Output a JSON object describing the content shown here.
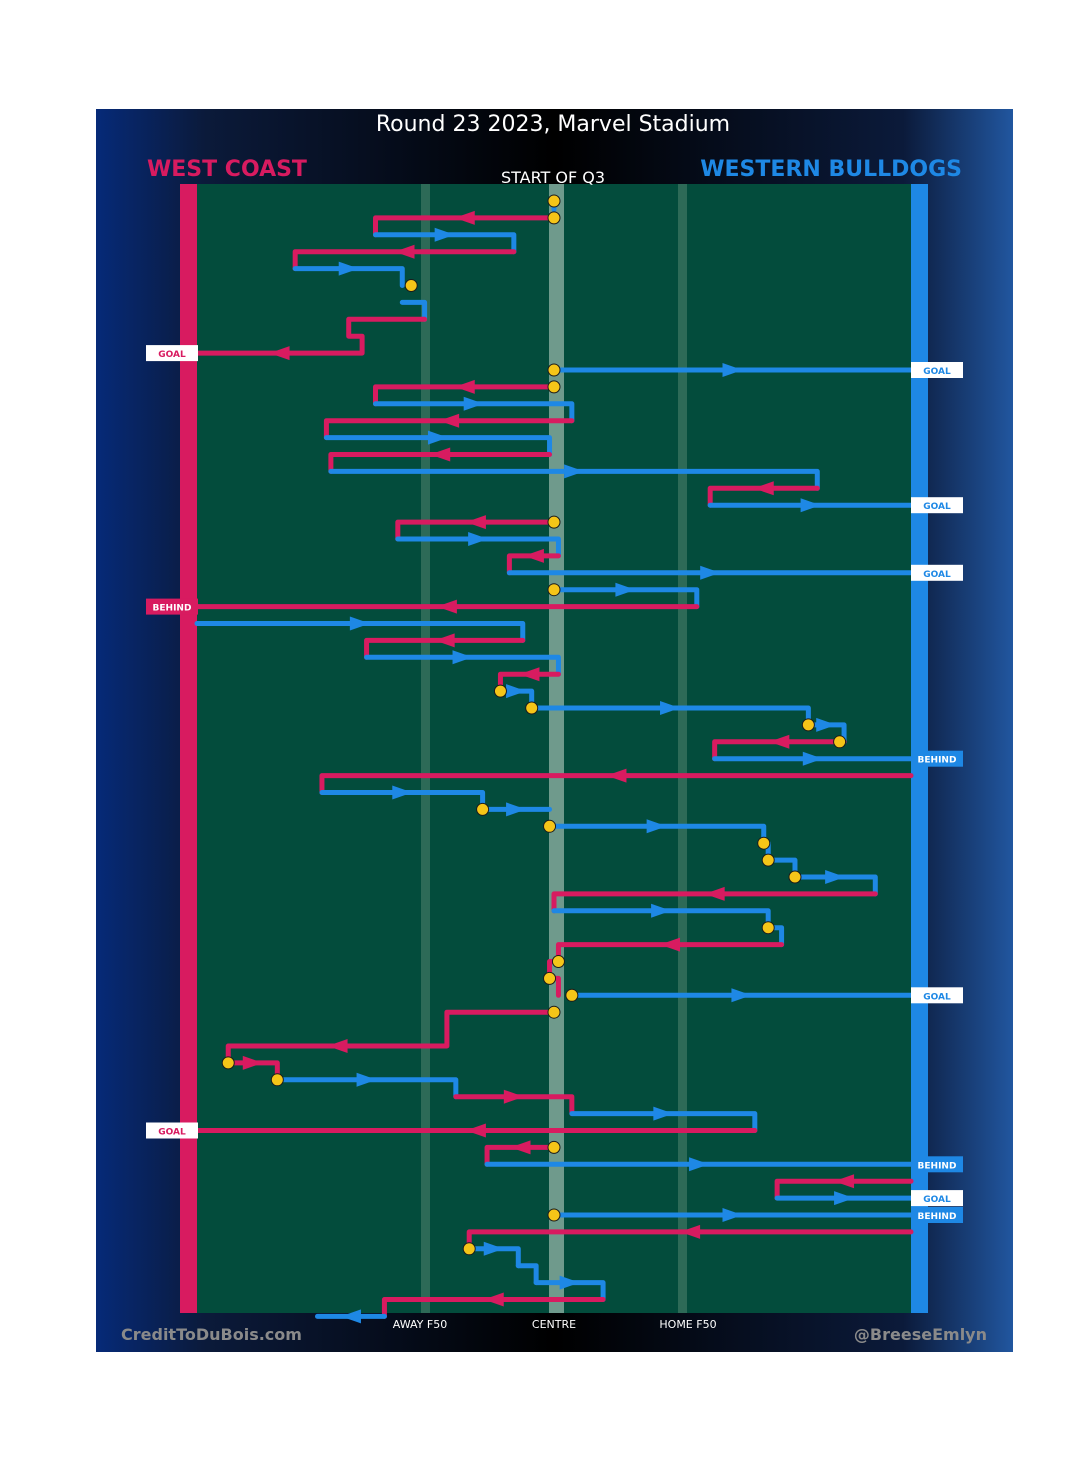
{
  "title": "Round 23 2023, Marvel Stadium",
  "subtitle": "START OF Q3",
  "teams": {
    "left": {
      "name": "WEST COAST",
      "color": "#d81b60"
    },
    "right": {
      "name": "WESTERN BULLDOGS",
      "color": "#1e88e5"
    }
  },
  "field_labels": {
    "away": "AWAY F50",
    "centre": "CENTRE",
    "home": "HOME F50"
  },
  "footer": {
    "left": "CreditToDuBois.com",
    "right": "@BreeseEmlyn"
  },
  "colors": {
    "west_coast": "#d81b60",
    "bulldogs": "#1e88e5",
    "field": "#034c3c",
    "stoppage": "#f5c518"
  },
  "chart_data": {
    "type": "line",
    "x_axis": "field position (metres from centre; -80 = West Coast goal line, +80 = Bulldogs goal line)",
    "xlim": [
      -80,
      80
    ],
    "marks": {
      "AWAY F50": -30,
      "CENTRE": 0,
      "HOME F50": 30
    },
    "sequence": [
      {
        "team": "bulldogs",
        "path": [
          [
            0,
            0
          ],
          [
            0,
            0.5
          ]
        ]
      },
      {
        "team": "westcoast",
        "path": [
          [
            0,
            1
          ],
          [
            -40,
            1
          ],
          [
            -40,
            2
          ]
        ]
      },
      {
        "team": "bulldogs",
        "path": [
          [
            -40,
            2
          ],
          [
            -9,
            2
          ],
          [
            -9,
            3
          ]
        ]
      },
      {
        "team": "westcoast",
        "path": [
          [
            -9,
            3
          ],
          [
            -58,
            3
          ],
          [
            -58,
            4
          ]
        ]
      },
      {
        "team": "bulldogs",
        "path": [
          [
            -58,
            4
          ],
          [
            -34,
            4
          ],
          [
            -34,
            5
          ]
        ]
      },
      {
        "team": "bulldogs",
        "path": [
          [
            -34,
            6
          ],
          [
            -29,
            6
          ],
          [
            -29,
            7
          ]
        ]
      },
      {
        "team": "westcoast",
        "path": [
          [
            -29,
            7
          ],
          [
            -46,
            7
          ],
          [
            -46,
            8
          ],
          [
            -43,
            8
          ],
          [
            -43,
            9
          ],
          [
            -80,
            9
          ]
        ],
        "result": "GOAL"
      },
      {
        "team": "bulldogs",
        "path": [
          [
            0,
            10
          ],
          [
            80,
            10
          ]
        ],
        "result": "GOAL"
      },
      {
        "team": "westcoast",
        "path": [
          [
            0,
            11
          ],
          [
            -40,
            11
          ],
          [
            -40,
            12
          ]
        ]
      },
      {
        "team": "bulldogs",
        "path": [
          [
            -40,
            12
          ],
          [
            4,
            12
          ],
          [
            4,
            13
          ]
        ]
      },
      {
        "team": "westcoast",
        "path": [
          [
            4,
            13
          ],
          [
            -51,
            13
          ],
          [
            -51,
            14
          ]
        ]
      },
      {
        "team": "bulldogs",
        "path": [
          [
            -51,
            14
          ],
          [
            -1,
            14
          ],
          [
            -1,
            15
          ]
        ]
      },
      {
        "team": "westcoast",
        "path": [
          [
            -1,
            15
          ],
          [
            -50,
            15
          ],
          [
            -50,
            16
          ]
        ]
      },
      {
        "team": "bulldogs",
        "path": [
          [
            -50,
            16
          ],
          [
            59,
            16
          ],
          [
            59,
            17
          ]
        ]
      },
      {
        "team": "westcoast",
        "path": [
          [
            59,
            17
          ],
          [
            35,
            17
          ],
          [
            35,
            18
          ]
        ]
      },
      {
        "team": "bulldogs",
        "path": [
          [
            35,
            18
          ],
          [
            80,
            18
          ]
        ],
        "result": "GOAL"
      },
      {
        "team": "westcoast",
        "path": [
          [
            0,
            19
          ],
          [
            -35,
            19
          ],
          [
            -35,
            20
          ]
        ]
      },
      {
        "team": "bulldogs",
        "path": [
          [
            -35,
            20
          ],
          [
            1,
            20
          ],
          [
            1,
            21
          ]
        ]
      },
      {
        "team": "westcoast",
        "path": [
          [
            1,
            21
          ],
          [
            -10,
            21
          ],
          [
            -10,
            22
          ]
        ]
      },
      {
        "team": "bulldogs",
        "path": [
          [
            -10,
            22
          ],
          [
            80,
            22
          ]
        ],
        "result": "GOAL"
      },
      {
        "team": "bulldogs",
        "path": [
          [
            0,
            23
          ],
          [
            32,
            23
          ],
          [
            32,
            24
          ]
        ]
      },
      {
        "team": "westcoast",
        "path": [
          [
            32,
            24
          ],
          [
            -80,
            24
          ]
        ],
        "result": "BEHIND"
      },
      {
        "team": "bulldogs",
        "path": [
          [
            -80,
            25
          ],
          [
            -7,
            25
          ],
          [
            -7,
            26
          ]
        ]
      },
      {
        "team": "westcoast",
        "path": [
          [
            -7,
            26
          ],
          [
            -42,
            26
          ],
          [
            -42,
            27
          ]
        ]
      },
      {
        "team": "bulldogs",
        "path": [
          [
            -42,
            27
          ],
          [
            1,
            27
          ],
          [
            1,
            28
          ]
        ]
      },
      {
        "team": "westcoast",
        "path": [
          [
            1,
            28
          ],
          [
            -12,
            28
          ],
          [
            -12,
            29
          ]
        ]
      },
      {
        "team": "bulldogs",
        "path": [
          [
            -12,
            29
          ],
          [
            -5,
            29
          ],
          [
            -5,
            30
          ]
        ]
      },
      {
        "team": "bulldogs",
        "path": [
          [
            -5,
            30
          ],
          [
            57,
            30
          ],
          [
            57,
            31
          ]
        ]
      },
      {
        "team": "bulldogs",
        "path": [
          [
            57,
            31
          ],
          [
            65,
            31
          ],
          [
            65,
            32
          ]
        ]
      },
      {
        "team": "westcoast",
        "path": [
          [
            65,
            32
          ],
          [
            36,
            32
          ],
          [
            36,
            33
          ]
        ]
      },
      {
        "team": "bulldogs",
        "path": [
          [
            36,
            33
          ],
          [
            80,
            33
          ]
        ],
        "result": "BEHIND"
      },
      {
        "team": "westcoast",
        "path": [
          [
            80,
            34
          ],
          [
            -52,
            34
          ],
          [
            -52,
            35
          ]
        ]
      },
      {
        "team": "bulldogs",
        "path": [
          [
            -52,
            35
          ],
          [
            -16,
            35
          ],
          [
            -16,
            36
          ]
        ]
      },
      {
        "team": "bulldogs",
        "path": [
          [
            -16,
            36
          ],
          [
            -1,
            36
          ]
        ]
      },
      {
        "team": "bulldogs",
        "path": [
          [
            -1,
            37
          ],
          [
            47,
            37
          ],
          [
            47,
            38
          ]
        ]
      },
      {
        "team": "bulldogs",
        "path": [
          [
            47,
            38
          ],
          [
            48,
            38
          ],
          [
            48,
            39
          ]
        ]
      },
      {
        "team": "bulldogs",
        "path": [
          [
            48,
            39
          ],
          [
            54,
            39
          ],
          [
            54,
            40
          ]
        ]
      },
      {
        "team": "bulldogs",
        "path": [
          [
            54,
            40
          ],
          [
            72,
            40
          ],
          [
            72,
            41
          ]
        ]
      },
      {
        "team": "westcoast",
        "path": [
          [
            72,
            41
          ],
          [
            0,
            41
          ],
          [
            0,
            42
          ]
        ]
      },
      {
        "team": "bulldogs",
        "path": [
          [
            0,
            42
          ],
          [
            48,
            42
          ],
          [
            48,
            43
          ]
        ]
      },
      {
        "team": "bulldogs",
        "path": [
          [
            48,
            43
          ],
          [
            51,
            43
          ],
          [
            51,
            44
          ]
        ]
      },
      {
        "team": "westcoast",
        "path": [
          [
            51,
            44
          ],
          [
            1,
            44
          ],
          [
            1,
            45
          ]
        ]
      },
      {
        "team": "westcoast",
        "path": [
          [
            1,
            45
          ],
          [
            -1,
            45
          ],
          [
            -1,
            46
          ]
        ]
      },
      {
        "team": "westcoast",
        "path": [
          [
            -1,
            46
          ],
          [
            1,
            46
          ],
          [
            1,
            47
          ]
        ]
      },
      {
        "team": "bulldogs",
        "path": [
          [
            4,
            47
          ],
          [
            80,
            47
          ]
        ],
        "result": "GOAL"
      },
      {
        "team": "westcoast",
        "path": [
          [
            0,
            48
          ],
          [
            -24,
            48
          ],
          [
            -24,
            50
          ],
          [
            -73,
            50
          ],
          [
            -73,
            51
          ]
        ]
      },
      {
        "team": "westcoast",
        "path": [
          [
            -73,
            51
          ],
          [
            -62,
            51
          ],
          [
            -62,
            52
          ]
        ]
      },
      {
        "team": "bulldogs",
        "path": [
          [
            -62,
            52
          ],
          [
            -22,
            52
          ],
          [
            -22,
            53
          ]
        ]
      },
      {
        "team": "westcoast",
        "path": [
          [
            -22,
            53
          ],
          [
            4,
            53
          ],
          [
            4,
            54
          ]
        ]
      },
      {
        "team": "bulldogs",
        "path": [
          [
            4,
            54
          ],
          [
            45,
            54
          ],
          [
            45,
            55
          ]
        ]
      },
      {
        "team": "westcoast",
        "path": [
          [
            45,
            55
          ],
          [
            -80,
            55
          ]
        ],
        "result": "GOAL"
      },
      {
        "team": "westcoast",
        "path": [
          [
            0,
            56
          ],
          [
            -15,
            56
          ],
          [
            -15,
            57
          ]
        ]
      },
      {
        "team": "bulldogs",
        "path": [
          [
            -15,
            57
          ],
          [
            80,
            57
          ]
        ],
        "result": "BEHIND"
      },
      {
        "team": "westcoast",
        "path": [
          [
            80,
            58
          ],
          [
            50,
            58
          ],
          [
            50,
            59
          ]
        ]
      },
      {
        "team": "bulldogs",
        "path": [
          [
            50,
            59
          ],
          [
            80,
            59
          ]
        ],
        "result": "GOAL"
      },
      {
        "team": "bulldogs",
        "path": [
          [
            0,
            60
          ],
          [
            80,
            60
          ]
        ],
        "result": "BEHIND"
      },
      {
        "team": "westcoast",
        "path": [
          [
            80,
            61
          ],
          [
            -19,
            61
          ],
          [
            -19,
            62
          ]
        ]
      },
      {
        "team": "bulldogs",
        "path": [
          [
            -19,
            62
          ],
          [
            -8,
            62
          ],
          [
            -8,
            63
          ]
        ]
      },
      {
        "team": "bulldogs",
        "path": [
          [
            -8,
            63
          ],
          [
            -4,
            63
          ],
          [
            -4,
            64
          ]
        ]
      },
      {
        "team": "bulldogs",
        "path": [
          [
            -4,
            64
          ],
          [
            11,
            64
          ],
          [
            11,
            65
          ]
        ]
      },
      {
        "team": "westcoast",
        "path": [
          [
            11,
            65
          ],
          [
            -38,
            65
          ],
          [
            -38,
            66
          ]
        ]
      },
      {
        "team": "bulldogs",
        "path": [
          [
            -38,
            66
          ],
          [
            -53,
            66
          ]
        ]
      }
    ],
    "stoppages": [
      [
        0,
        0
      ],
      [
        0,
        1
      ],
      [
        -32,
        5
      ],
      [
        0,
        10
      ],
      [
        0,
        11
      ],
      [
        0,
        19
      ],
      [
        0,
        23
      ],
      [
        -12,
        29
      ],
      [
        -5,
        30
      ],
      [
        57,
        31
      ],
      [
        64,
        32
      ],
      [
        -16,
        36
      ],
      [
        -1,
        37
      ],
      [
        47,
        38
      ],
      [
        48,
        39
      ],
      [
        54,
        40
      ],
      [
        48,
        43
      ],
      [
        1,
        45
      ],
      [
        -1,
        46
      ],
      [
        4,
        47
      ],
      [
        0,
        48
      ],
      [
        -73,
        51
      ],
      [
        -62,
        52
      ],
      [
        0,
        56
      ],
      [
        0,
        60
      ],
      [
        -19,
        62
      ]
    ]
  }
}
